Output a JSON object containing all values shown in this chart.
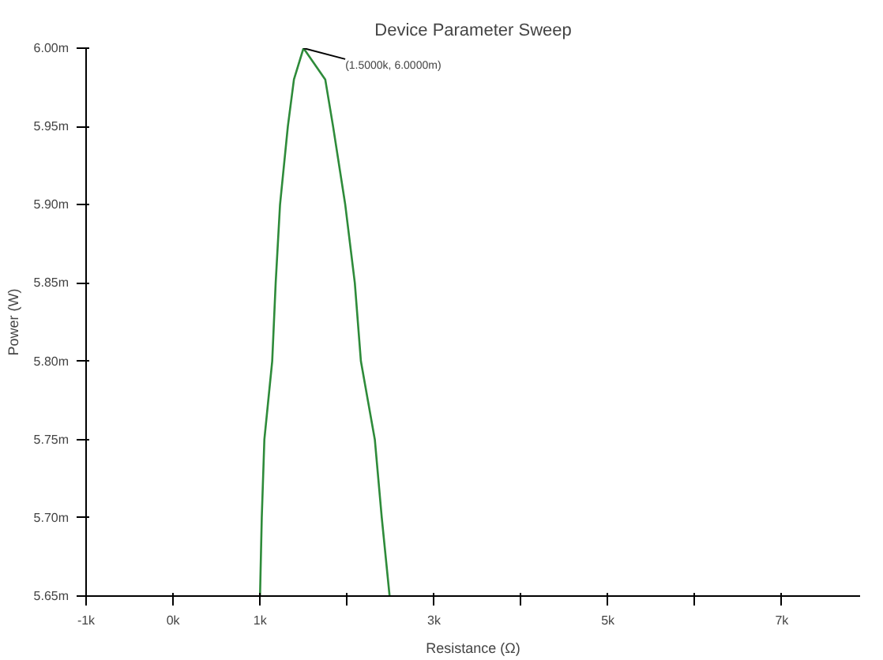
{
  "chart_data": {
    "type": "line",
    "title": "Device Parameter Sweep",
    "xlabel": "Resistance (Ω)",
    "ylabel": "Power (W)",
    "x": [
      1000,
      1020,
      1050,
      1140,
      1180,
      1230,
      1320,
      1390,
      1500,
      1750,
      1840,
      1980,
      2090,
      2160,
      2320,
      2400,
      2490
    ],
    "series": [
      {
        "color": "#2e8b3a",
        "values": [
          5.65,
          5.7,
          5.75,
          5.8,
          5.85,
          5.9,
          5.95,
          5.98,
          6.0,
          5.98,
          5.95,
          5.9,
          5.85,
          5.8,
          5.75,
          5.7,
          5.65
        ]
      }
    ],
    "xlim": [
      -1000,
      7900
    ],
    "ylim": [
      5.65,
      6.0
    ],
    "xticks": [
      {
        "value": -1000,
        "label": "-1k"
      },
      {
        "value": 0,
        "label": "0k"
      },
      {
        "value": 1000,
        "label": "1k"
      },
      {
        "value": 2000,
        "label": null
      },
      {
        "value": 3000,
        "label": "3k"
      },
      {
        "value": 4000,
        "label": null
      },
      {
        "value": 5000,
        "label": "5k"
      },
      {
        "value": 6000,
        "label": null
      },
      {
        "value": 7000,
        "label": "7k"
      }
    ],
    "yticks": [
      {
        "value": 5.65,
        "label": "5.65m"
      },
      {
        "value": 5.7,
        "label": "5.70m"
      },
      {
        "value": 5.75,
        "label": "5.75m"
      },
      {
        "value": 5.8,
        "label": "5.80m"
      },
      {
        "value": 5.85,
        "label": "5.85m"
      },
      {
        "value": 5.9,
        "label": "5.90m"
      },
      {
        "value": 5.95,
        "label": "5.95m"
      },
      {
        "value": 6.0,
        "label": "6.00m"
      }
    ],
    "annotations": [
      {
        "text": "(1.5000k, 6.0000m)",
        "x": 1500,
        "y": 6.0
      }
    ],
    "grid": false,
    "line_style": "solid"
  }
}
